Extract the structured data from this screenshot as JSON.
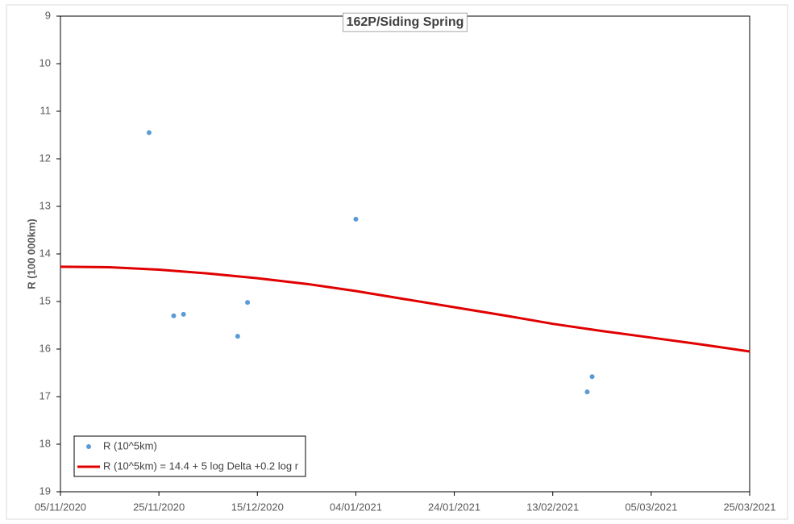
{
  "chart_data": {
    "type": "scatter",
    "title": "162P/Siding Spring",
    "y_label": "R (100 000km)",
    "y_inverted": true,
    "legend": "lower left",
    "grid": false,
    "xlim": [
      "2020-11-05",
      "2021-03-25"
    ],
    "xticks": [
      {
        "value": "2020-11-05",
        "label": "05/11/2020"
      },
      {
        "value": "2020-11-25",
        "label": "25/11/2020"
      },
      {
        "value": "2020-12-15",
        "label": "15/12/2020"
      },
      {
        "value": "2021-01-04",
        "label": "04/01/2021"
      },
      {
        "value": "2021-01-24",
        "label": "24/01/2021"
      },
      {
        "value": "2021-02-13",
        "label": "13/02/2021"
      },
      {
        "value": "2021-03-05",
        "label": "05/03/2021"
      },
      {
        "value": "2021-03-25",
        "label": "25/03/2021"
      }
    ],
    "ylim": [
      9,
      19
    ],
    "yticks": [
      9,
      10,
      11,
      12,
      13,
      14,
      15,
      16,
      17,
      18,
      19
    ],
    "series": [
      {
        "name": "R (10^5km)",
        "mode": "markers",
        "color": "#5b9bd5",
        "x": [
          "2020-11-23",
          "2020-11-28",
          "2020-11-30",
          "2020-12-11",
          "2020-12-13",
          "2021-01-04",
          "2021-02-20",
          "2021-02-21"
        ],
        "values": [
          11.45,
          15.3,
          15.27,
          15.73,
          15.02,
          13.27,
          16.9,
          16.58
        ]
      },
      {
        "name": "R (10^5km) = 14.4 + 5 log Delta +0.2 log r",
        "mode": "line",
        "color": "#e00000",
        "x": [
          "2020-11-05",
          "2020-11-15",
          "2020-11-25",
          "2020-12-05",
          "2020-12-15",
          "2020-12-25",
          "2021-01-04",
          "2021-01-14",
          "2021-01-24",
          "2021-02-03",
          "2021-02-13",
          "2021-02-23",
          "2021-03-05",
          "2021-03-15",
          "2021-03-25"
        ],
        "values": [
          14.27,
          14.28,
          14.33,
          14.41,
          14.51,
          14.63,
          14.78,
          14.95,
          15.12,
          15.29,
          15.47,
          15.62,
          15.76,
          15.9,
          16.05
        ]
      }
    ]
  }
}
